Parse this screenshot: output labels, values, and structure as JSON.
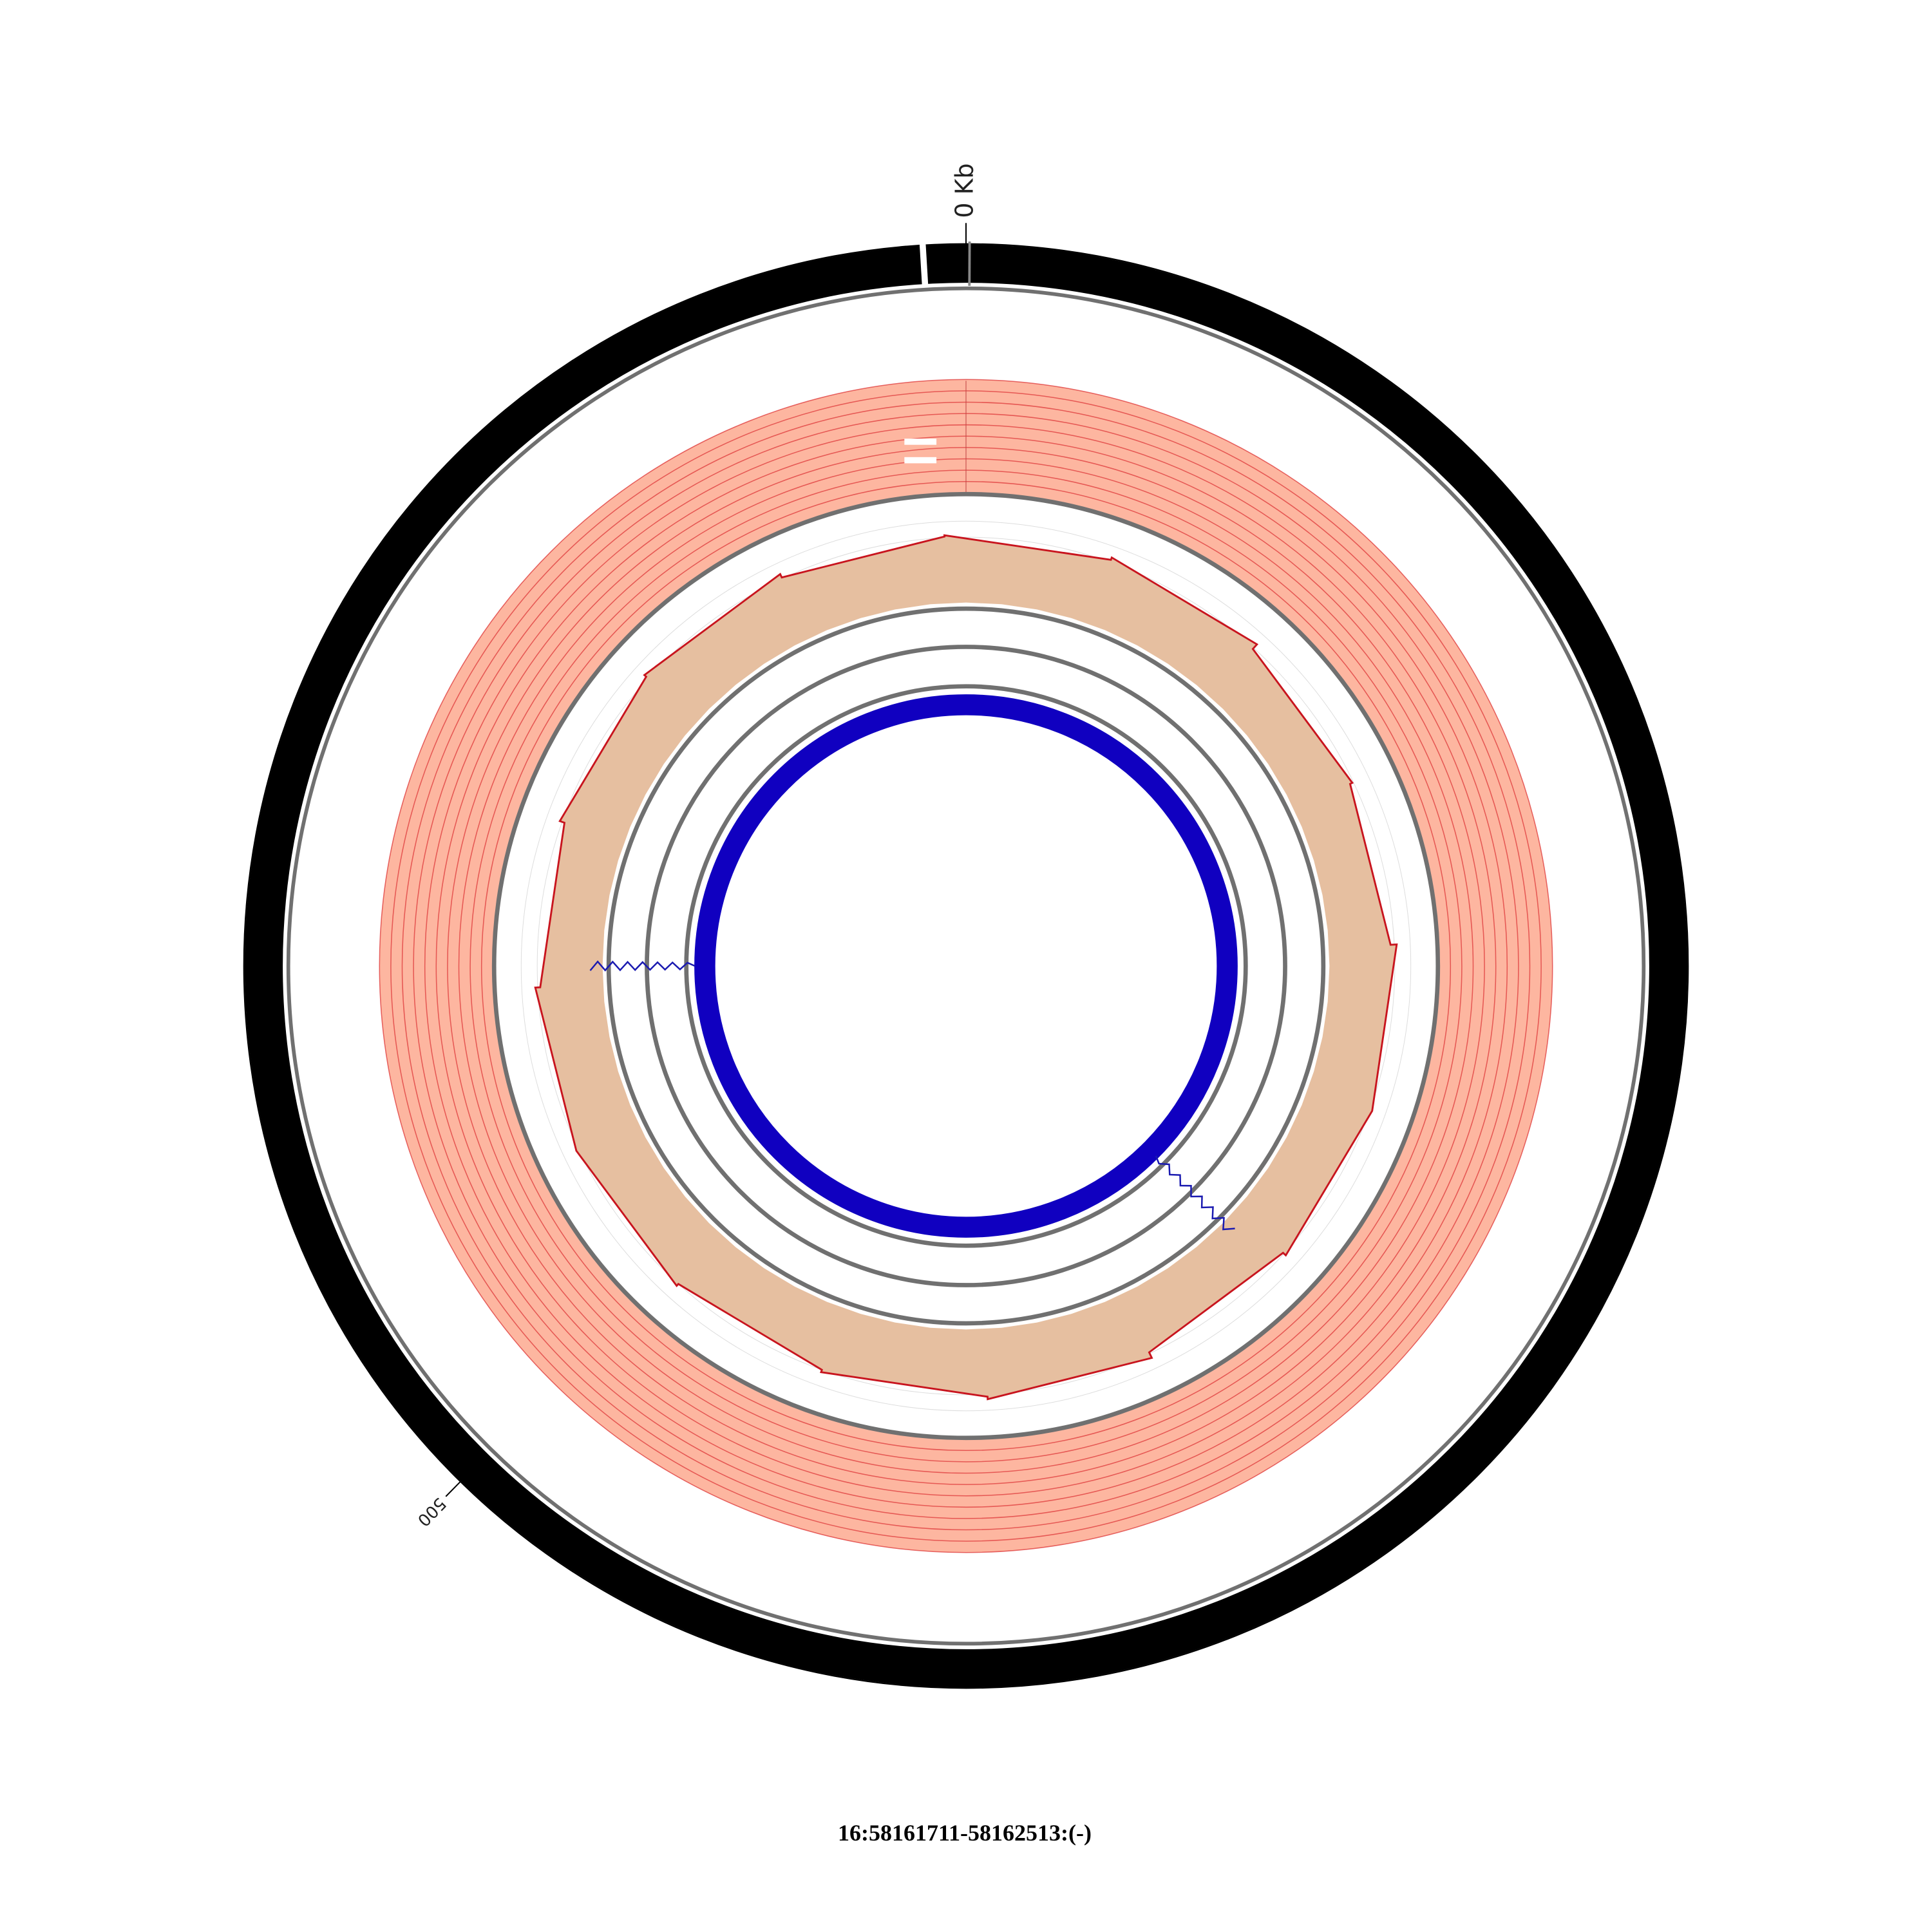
{
  "chart_data": {
    "type": "circos",
    "title": "16:58161711-58162513:(-)",
    "xlim": [
      0,
      802
    ],
    "xticks": [
      {
        "value": 0,
        "label": "0 Kb"
      },
      500
    ]
  }
}
